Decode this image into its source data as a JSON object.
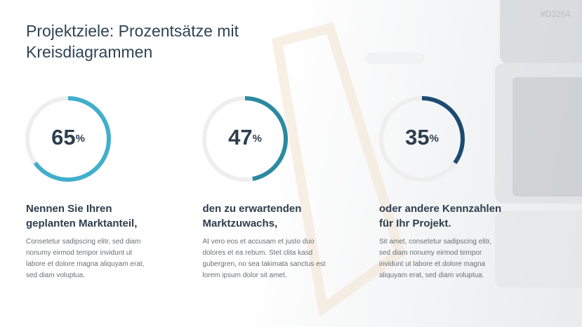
{
  "title": [
    "Projektziele: Prozentsätze mit",
    "Kreisdiagrammen"
  ],
  "code": "#D3264",
  "chart_data": [
    {
      "type": "donut",
      "values": [
        65
      ],
      "unit": "%",
      "ylim": [
        0,
        100
      ],
      "color": "#41afcb",
      "heading": [
        "Nennen Sie Ihren",
        "geplanten Marktanteil,"
      ],
      "text": [
        "Consetetur sadipscing elitr, sed diam",
        "nonumy eirmod tempor invidunt ut",
        "labore et dolore magna aliquyam erat,",
        "sed diam voluptua."
      ]
    },
    {
      "type": "donut",
      "values": [
        47
      ],
      "unit": "%",
      "ylim": [
        0,
        100
      ],
      "color": "#2c8a9f",
      "heading": [
        "den zu erwartenden",
        "Marktzuwachs,"
      ],
      "text": [
        "At vero eos et accusam et justo duo",
        "dolores et ea rebum. Stet clita kasd",
        "gubergren, no sea takimata sanctus est",
        "lorem ipsum dolor sit amet."
      ]
    },
    {
      "type": "donut",
      "values": [
        35
      ],
      "unit": "%",
      "ylim": [
        0,
        100
      ],
      "color": "#1d4a70",
      "heading": [
        "oder andere Kennzahlen",
        "für Ihr Projekt."
      ],
      "text": [
        "Sit amet, consetetur sadipscing elitr,",
        "sed diam nonumy eirmod tempor",
        "invidunt ut labore et dolore magna",
        "aliquyam erat, sed diam voluptua."
      ]
    }
  ]
}
